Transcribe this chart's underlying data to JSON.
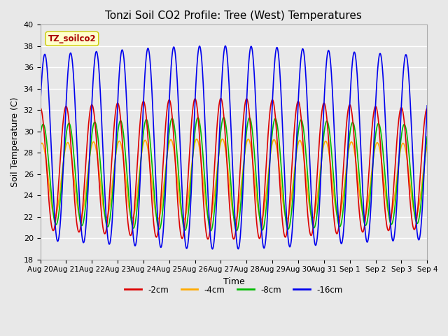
{
  "title": "Tonzi Soil CO2 Profile: Tree (West) Temperatures",
  "xlabel": "Time",
  "ylabel": "Soil Temperature (C)",
  "ylim": [
    18,
    40
  ],
  "xlim_start": 0,
  "xlim_end": 15.0,
  "xtick_labels": [
    "Aug 20",
    "Aug 21",
    "Aug 22",
    "Aug 23",
    "Aug 24",
    "Aug 25",
    "Aug 26",
    "Aug 27",
    "Aug 28",
    "Aug 29",
    "Aug 30",
    "Aug 31",
    "Sep 1",
    "Sep 2",
    "Sep 3",
    "Sep 4"
  ],
  "xtick_positions": [
    0,
    1,
    2,
    3,
    4,
    5,
    6,
    7,
    8,
    9,
    10,
    11,
    12,
    13,
    14,
    15
  ],
  "ytick_labels": [
    "18",
    "20",
    "22",
    "24",
    "26",
    "28",
    "30",
    "32",
    "34",
    "36",
    "38",
    "40"
  ],
  "ytick_values": [
    18,
    20,
    22,
    24,
    26,
    28,
    30,
    32,
    34,
    36,
    38,
    40
  ],
  "series": [
    {
      "label": "-2cm",
      "color": "#dd0000"
    },
    {
      "label": "-4cm",
      "color": "#ffaa00"
    },
    {
      "label": "-8cm",
      "color": "#00bb00"
    },
    {
      "label": "-16cm",
      "color": "#0000ee"
    }
  ],
  "annotation_text": "TZ_soilco2",
  "bg_color": "#e8e8e8",
  "plot_bg_color": "#e8e8e8",
  "grid_color": "#ffffff",
  "title_fontsize": 11
}
